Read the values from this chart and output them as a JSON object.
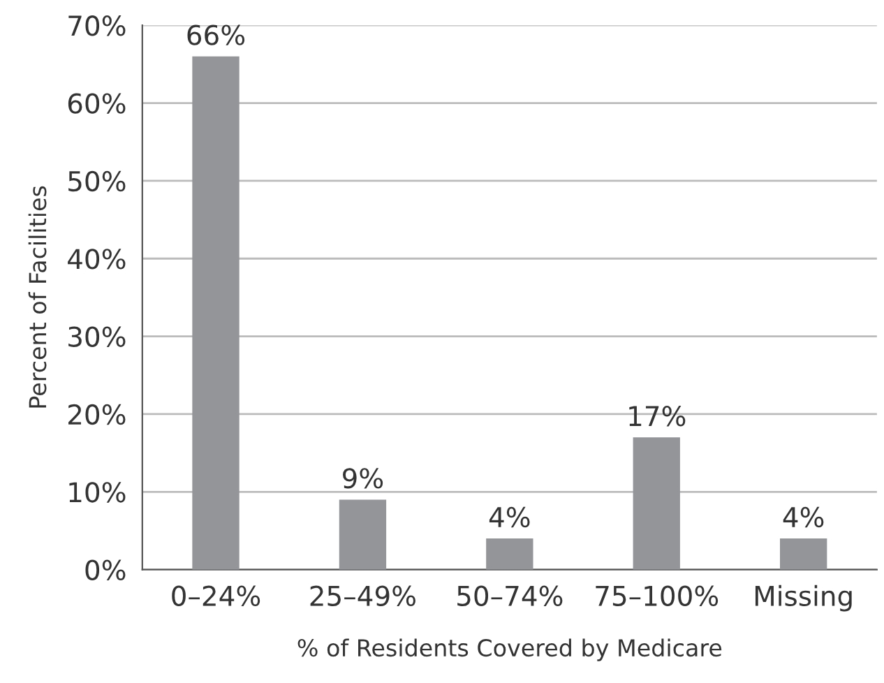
{
  "chart_data": {
    "type": "bar",
    "xlabel": "% of Residents Covered by Medicare",
    "ylabel": "Percent of Facilities",
    "categories": [
      "0–24%",
      "25–49%",
      "50–74%",
      "75–100%",
      "Missing"
    ],
    "values": [
      66,
      9,
      4,
      17,
      4
    ],
    "value_labels": [
      "66%",
      "9%",
      "4%",
      "17%",
      "4%"
    ],
    "color": "#939598",
    "ylim": [
      0,
      70
    ],
    "yticks": [
      {
        "value": 0,
        "label": "0%"
      },
      {
        "value": 10,
        "label": "10%"
      },
      {
        "value": 20,
        "label": "20%"
      },
      {
        "value": 30,
        "label": "30%"
      },
      {
        "value": 40,
        "label": "40%"
      },
      {
        "value": 50,
        "label": "50%"
      },
      {
        "value": 60,
        "label": "60%"
      },
      {
        "value": 70,
        "label": "70%"
      }
    ],
    "grid": "y",
    "legend": false
  }
}
